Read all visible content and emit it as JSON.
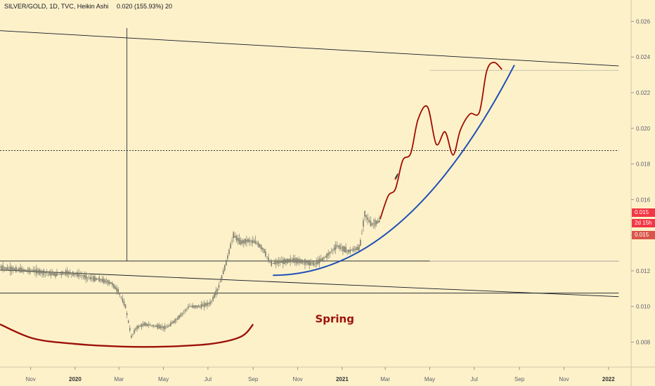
{
  "header": {
    "symbol_label": "SILVER/GOLD, 1D, TVC, Heikin Ashi",
    "measure_label": "0.020 (155.93%) 20"
  },
  "price_badges": [
    {
      "label": "0.015",
      "color": "#f23645"
    },
    {
      "label": "2d 15h",
      "color": "#f23645"
    },
    {
      "label": "0.015",
      "color": "#d9554a"
    }
  ],
  "colors": {
    "background": "#fdf1ca",
    "candle": "#7a7a6a",
    "trendline": "#131722",
    "projection_path": "#a00d00",
    "parabolic_curve": "#1f4fb5",
    "spring_curve": "#9c1208",
    "horizontal_level": "#b5b5a6"
  },
  "annotations": {
    "spring_label": "Spring"
  },
  "chart_data": {
    "type": "candlestick",
    "title": "SILVER/GOLD, 1D, TVC, Heikin Ashi",
    "ylim": [
      0.0066,
      0.0272
    ],
    "y_ticks": [
      "0.026",
      "0.024",
      "0.022",
      "0.020",
      "0.018",
      "0.016",
      "0.014",
      "0.012",
      "0.010",
      "0.008"
    ],
    "x_ticks": [
      {
        "label": "Nov",
        "t": "2019-11-01",
        "bold": false
      },
      {
        "label": "2020",
        "t": "2020-01-01",
        "bold": true
      },
      {
        "label": "Mar",
        "t": "2020-03-01",
        "bold": false
      },
      {
        "label": "May",
        "t": "2020-05-01",
        "bold": false
      },
      {
        "label": "Jul",
        "t": "2020-07-01",
        "bold": false
      },
      {
        "label": "Sep",
        "t": "2020-09-01",
        "bold": false
      },
      {
        "label": "Nov",
        "t": "2020-11-01",
        "bold": false
      },
      {
        "label": "2021",
        "t": "2021-01-01",
        "bold": true
      },
      {
        "label": "Mar",
        "t": "2021-03-01",
        "bold": false
      },
      {
        "label": "May",
        "t": "2021-05-01",
        "bold": false
      },
      {
        "label": "Jul",
        "t": "2021-07-01",
        "bold": false
      },
      {
        "label": "Sep",
        "t": "2021-09-01",
        "bold": false
      },
      {
        "label": "Nov",
        "t": "2021-11-01",
        "bold": false
      },
      {
        "label": "2022",
        "t": "2022-01-01",
        "bold": true
      }
    ],
    "price_path": [
      [
        "2019-09-20",
        0.0122
      ],
      [
        "2019-10-05",
        0.0121
      ],
      [
        "2019-10-20",
        0.01205
      ],
      [
        "2019-11-05",
        0.012
      ],
      [
        "2019-11-20",
        0.0119
      ],
      [
        "2019-12-05",
        0.0118
      ],
      [
        "2019-12-20",
        0.0119
      ],
      [
        "2020-01-05",
        0.0118
      ],
      [
        "2020-01-20",
        0.0116
      ],
      [
        "2020-02-05",
        0.0115
      ],
      [
        "2020-02-20",
        0.0113
      ],
      [
        "2020-03-01",
        0.0108
      ],
      [
        "2020-03-10",
        0.01
      ],
      [
        "2020-03-18",
        0.0083
      ],
      [
        "2020-03-25",
        0.0088
      ],
      [
        "2020-04-05",
        0.009
      ],
      [
        "2020-04-20",
        0.0089
      ],
      [
        "2020-05-05",
        0.0088
      ],
      [
        "2020-05-20",
        0.0093
      ],
      [
        "2020-06-05",
        0.01
      ],
      [
        "2020-06-20",
        0.01
      ],
      [
        "2020-07-05",
        0.0102
      ],
      [
        "2020-07-15",
        0.011
      ],
      [
        "2020-07-25",
        0.0123
      ],
      [
        "2020-08-05",
        0.014
      ],
      [
        "2020-08-15",
        0.0136
      ],
      [
        "2020-08-25",
        0.0137
      ],
      [
        "2020-09-05",
        0.0136
      ],
      [
        "2020-09-15",
        0.0132
      ],
      [
        "2020-09-25",
        0.0124
      ],
      [
        "2020-10-10",
        0.0125
      ],
      [
        "2020-10-25",
        0.0126
      ],
      [
        "2020-11-10",
        0.0125
      ],
      [
        "2020-11-25",
        0.0124
      ],
      [
        "2020-12-10",
        0.0128
      ],
      [
        "2020-12-25",
        0.0134
      ],
      [
        "2021-01-10",
        0.0131
      ],
      [
        "2021-01-25",
        0.0133
      ],
      [
        "2021-02-01",
        0.0152
      ],
      [
        "2021-02-10",
        0.0146
      ],
      [
        "2021-02-22",
        0.0148
      ]
    ],
    "projection_path": [
      [
        "2021-02-22",
        0.0149
      ],
      [
        "2021-03-05",
        0.0162
      ],
      [
        "2021-03-15",
        0.0166
      ],
      [
        "2021-03-25",
        0.0182
      ],
      [
        "2021-04-05",
        0.0186
      ],
      [
        "2021-04-15",
        0.0205
      ],
      [
        "2021-04-28",
        0.0212
      ],
      [
        "2021-05-10",
        0.0191
      ],
      [
        "2021-05-22",
        0.0198
      ],
      [
        "2021-06-02",
        0.0185
      ],
      [
        "2021-06-12",
        0.0199
      ],
      [
        "2021-06-25",
        0.0208
      ],
      [
        "2021-07-08",
        0.0209
      ],
      [
        "2021-07-18",
        0.0232
      ],
      [
        "2021-07-28",
        0.0237
      ],
      [
        "2021-08-08",
        0.0233
      ]
    ],
    "parabolic_curve": {
      "from": [
        "2020-09-28",
        0.01175
      ],
      "to": [
        "2021-08-25",
        0.02355
      ]
    },
    "spring_curve": [
      [
        "2019-09-20",
        0.009
      ],
      [
        "2019-11-05",
        0.0082
      ],
      [
        "2020-01-01",
        0.0079
      ],
      [
        "2020-03-05",
        0.00775
      ],
      [
        "2020-05-05",
        0.00775
      ],
      [
        "2020-07-05",
        0.0079
      ],
      [
        "2020-08-15",
        0.0083
      ],
      [
        "2020-09-01",
        0.009
      ]
    ],
    "trendlines": [
      {
        "from": [
          "2019-09-20",
          0.02548
        ],
        "to": [
          "2022-01-15",
          0.0235
        ]
      },
      {
        "from": [
          "2019-09-20",
          0.01205
        ],
        "to": [
          "2022-01-15",
          0.01055
        ]
      }
    ],
    "horizontal_lines": [
      {
        "value": 0.01255,
        "from": "2019-09-20",
        "to": "2022-01-15",
        "style": "solid"
      },
      {
        "value": 0.01075,
        "from": "2019-09-20",
        "to": "2022-01-15",
        "style": "solid"
      },
      {
        "value": 0.01875,
        "from": "2019-09-20",
        "to": "2022-01-15",
        "style": "dotted"
      },
      {
        "value": 0.02325,
        "from": "2021-05-01",
        "to": "2022-01-15",
        "style": "thin"
      },
      {
        "value": 0.01255,
        "from": "2021-05-01",
        "to": "2022-01-15",
        "style": "thin"
      }
    ],
    "vertical_lines": [
      {
        "t": "2020-03-12"
      }
    ],
    "last_price": 0.015
  }
}
